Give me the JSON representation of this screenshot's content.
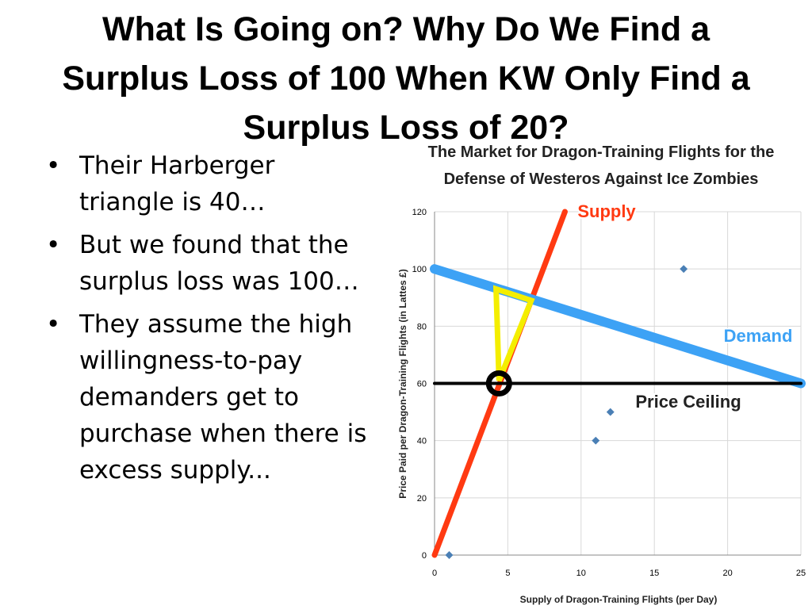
{
  "slide": {
    "title": [
      "What Is Going on? Why Do We Find a",
      "Surplus Loss of 100 When KW Only Find a",
      "Surplus Loss of 20?"
    ],
    "bullets": [
      "Their Harberger triangle is 40…",
      "But we found that the surplus loss was 100…",
      "They assume the high willingness-to-pay demanders get to purchase when there is excess supply..."
    ]
  },
  "chart_data": {
    "type": "scatter",
    "title": [
      "The Market for Dragon-Training Flights for the",
      "Defense of Westeros Against Ice Zombies"
    ],
    "x_label": "Supply of Dragon-Training Flights (per Day)",
    "y_label": "Price Paid per Dragon-Training Flights (in Lattes £)",
    "xlim": [
      0,
      25
    ],
    "ylim": [
      0,
      120
    ],
    "xticks": [
      0,
      5,
      10,
      15,
      20,
      25
    ],
    "yticks": [
      0,
      20,
      40,
      60,
      80,
      100,
      120
    ],
    "grid": true,
    "points": {
      "color": "#4a7fb5",
      "x": [
        1,
        11,
        12,
        17
      ],
      "values": [
        0,
        40,
        50,
        100
      ]
    },
    "lines": [
      {
        "name": "Supply",
        "color": "#ff3a12",
        "x": [
          0,
          8.9
        ],
        "values": [
          0,
          120
        ]
      },
      {
        "name": "Demand",
        "color": "#3da2f5",
        "x": [
          0,
          25
        ],
        "values": [
          100,
          60
        ]
      },
      {
        "name": "Price Ceiling",
        "color": "#000000",
        "x": [
          0,
          25
        ],
        "values": [
          60,
          60
        ]
      }
    ],
    "triangle": {
      "color": "#f4ee00",
      "x": [
        4.2,
        6.6,
        4.4
      ],
      "values": [
        93,
        89,
        61
      ]
    },
    "marker": {
      "color": "#000000",
      "x": [
        4.4
      ],
      "values": [
        60
      ]
    }
  }
}
